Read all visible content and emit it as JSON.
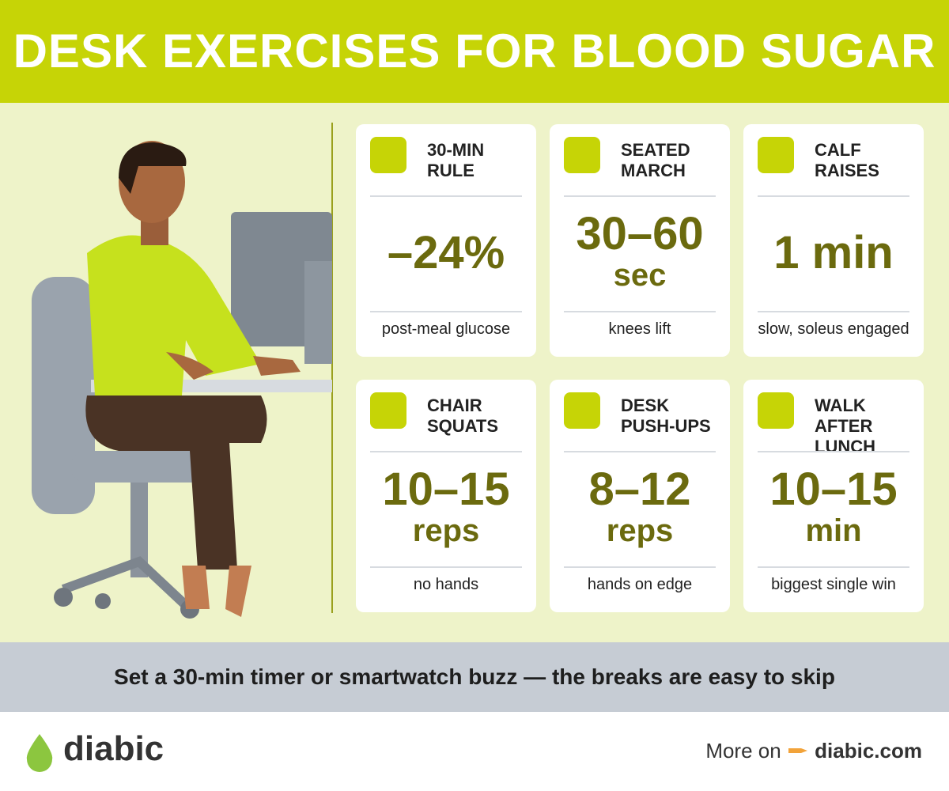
{
  "header": {
    "title": "DESK EXERCISES FOR BLOOD SUGAR"
  },
  "cards": [
    {
      "title": [
        "30-MIN",
        "RULE"
      ],
      "value": [
        "–24%"
      ],
      "caption": "post-meal glucose"
    },
    {
      "title": [
        "SEATED",
        "MARCH"
      ],
      "value": [
        "30–60",
        "sec"
      ],
      "caption": "knees lift"
    },
    {
      "title": [
        "CALF",
        "RAISES"
      ],
      "value": [
        "1 min"
      ],
      "caption": "slow, soleus engaged"
    },
    {
      "title": [
        "CHAIR",
        "SQUATS"
      ],
      "value": [
        "10–15",
        "reps"
      ],
      "caption": "no hands"
    },
    {
      "title": [
        "DESK",
        "PUSH-UPS"
      ],
      "value": [
        "8–12",
        "reps"
      ],
      "caption": "hands on edge"
    },
    {
      "title": [
        "WALK AFTER",
        "LUNCH"
      ],
      "value": [
        "10–15",
        "min"
      ],
      "caption": "biggest single win"
    }
  ],
  "banner": {
    "text": "Set a 30-min timer or smartwatch buzz — the breaks are easy to skip"
  },
  "footer": {
    "brand": "diabic",
    "more": "More on",
    "link": "diabic.com"
  }
}
